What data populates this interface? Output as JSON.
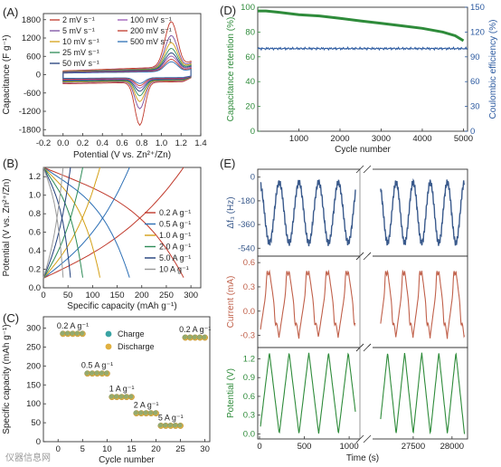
{
  "watermark": "仪器信息网",
  "chart_data": [
    {
      "panel": "(A)",
      "type": "line",
      "xlabel": "Potential (V vs. Zn²⁺/Zn)",
      "ylabel": "Capacitance (F g⁻¹)",
      "xlim": [
        -0.2,
        1.4
      ],
      "ylim": [
        -2000,
        2000
      ],
      "xticks": [
        -0.2,
        0.0,
        0.2,
        0.4,
        0.6,
        0.8,
        1.0,
        1.2,
        1.4
      ],
      "xtick_labels": [
        "-0.2",
        "0.0",
        "0.2",
        "0.4",
        "0.6",
        "0.8",
        "1.0",
        "1.2",
        "1.4"
      ],
      "yticks": [
        -1800,
        -1200,
        -600,
        0,
        600,
        1200,
        1800
      ],
      "legend": [
        "2 mV s⁻¹",
        "5 mV s⁻¹",
        "10 mV s⁻¹",
        "25 mV s⁻¹",
        "50 mV s⁻¹",
        "100 mV s⁻¹",
        "200 mV s⁻¹",
        "500 mV s⁻¹"
      ],
      "series": [
        {
          "name": "2 mV s⁻¹",
          "color": "#c0392b",
          "peak_anodic": 1750,
          "peak_cathodic": -1650,
          "base": 250
        },
        {
          "name": "5 mV s⁻¹",
          "color": "#7b4fa0",
          "peak_anodic": 1250,
          "peak_cathodic": -1050,
          "base": 220
        },
        {
          "name": "10 mV s⁻¹",
          "color": "#d4a017",
          "peak_anodic": 1000,
          "peak_cathodic": -800,
          "base": 200
        },
        {
          "name": "25 mV s⁻¹",
          "color": "#2e8b57",
          "peak_anodic": 800,
          "peak_cathodic": -600,
          "base": 180
        },
        {
          "name": "50 mV s⁻¹",
          "color": "#1f3d7a",
          "peak_anodic": 650,
          "peak_cathodic": -450,
          "base": 160
        },
        {
          "name": "100 mV s⁻¹",
          "color": "#9b59b6",
          "peak_anodic": 550,
          "peak_cathodic": -350,
          "base": 140
        },
        {
          "name": "200 mV s⁻¹",
          "color": "#c0392b",
          "peak_anodic": 450,
          "peak_cathodic": -280,
          "base": 120
        },
        {
          "name": "500 mV s⁻¹",
          "color": "#2c6fb5",
          "peak_anodic": 380,
          "peak_cathodic": -220,
          "base": 100
        }
      ]
    },
    {
      "panel": "(B)",
      "type": "line",
      "xlabel": "Specific capacity (mAh g⁻¹)",
      "ylabel": "Potential (V vs. Zn²⁺/Zn)",
      "xlim": [
        0,
        320
      ],
      "ylim": [
        0,
        1.3
      ],
      "xticks": [
        0,
        50,
        100,
        150,
        200,
        250,
        300
      ],
      "yticks": [
        0.0,
        0.2,
        0.4,
        0.6,
        0.8,
        1.0,
        1.2
      ],
      "ytick_labels": [
        "0.0",
        "0.2",
        "0.4",
        "0.6",
        "0.8",
        "1.0",
        "1.2"
      ],
      "legend": [
        "0.2 A g⁻¹",
        "0.5 A g⁻¹",
        "1.0 A g⁻¹",
        "2.0 A g⁻¹",
        "5.0 A g⁻¹",
        "10 A g⁻¹"
      ],
      "series": [
        {
          "name": "0.2 A g⁻¹",
          "color": "#c0392b",
          "capacity": 285
        },
        {
          "name": "0.5 A g⁻¹",
          "color": "#2c6fb5",
          "capacity": 175
        },
        {
          "name": "1.0 A g⁻¹",
          "color": "#d4a017",
          "capacity": 115
        },
        {
          "name": "2.0 A g⁻¹",
          "color": "#2e8b57",
          "capacity": 80
        },
        {
          "name": "5.0 A g⁻¹",
          "color": "#1f3d7a",
          "capacity": 55
        },
        {
          "name": "10 A g⁻¹",
          "color": "#999999",
          "capacity": 40
        }
      ]
    },
    {
      "panel": "(C)",
      "type": "scatter",
      "xlabel": "Cycle number",
      "ylabel": "Specific capacity (mAh g⁻¹)",
      "xlim": [
        -3,
        31
      ],
      "ylim": [
        0,
        330
      ],
      "xticks": [
        0,
        5,
        10,
        15,
        20,
        25,
        30
      ],
      "yticks": [
        0,
        50,
        100,
        150,
        200,
        250,
        300
      ],
      "legend": [
        "Charge",
        "Discharge"
      ],
      "series_colors": {
        "charge": "#3aa3a3",
        "discharge": "#e0b040"
      },
      "groups": [
        {
          "label": "0.2 A g⁻¹",
          "cycles": [
            1,
            2,
            3,
            4,
            5
          ],
          "value": 285
        },
        {
          "label": "0.5 A g⁻¹",
          "cycles": [
            6,
            7,
            8,
            9,
            10
          ],
          "value": 180
        },
        {
          "label": "1 A g⁻¹",
          "cycles": [
            11,
            12,
            13,
            14,
            15
          ],
          "value": 118
        },
        {
          "label": "2 A g⁻¹",
          "cycles": [
            16,
            17,
            18,
            19,
            20
          ],
          "value": 75
        },
        {
          "label": "5 A g⁻¹",
          "cycles": [
            21,
            22,
            23,
            24,
            25
          ],
          "value": 42
        },
        {
          "label": "0.2 A g⁻¹",
          "cycles": [
            26,
            27,
            28,
            29,
            30
          ],
          "value": 275
        }
      ]
    },
    {
      "panel": "(D)",
      "type": "line",
      "xlabel": "Cycle number",
      "ylabel": "Capacitance retention (%)",
      "ylabel_right": "Coulombic efficiency (%)",
      "xlim": [
        0,
        5100
      ],
      "ylim": [
        0,
        100
      ],
      "ylim_right": [
        0,
        150
      ],
      "xticks": [
        1000,
        2000,
        3000,
        4000,
        5000
      ],
      "yticks": [
        0,
        20,
        40,
        60,
        80,
        100
      ],
      "yticks_right": [
        0,
        30,
        60,
        90,
        120,
        150
      ],
      "series": [
        {
          "name": "retention",
          "color": "#2e8b3a",
          "x": [
            0,
            200,
            500,
            1000,
            1500,
            2000,
            2500,
            3000,
            3500,
            4000,
            4500,
            4800,
            5000
          ],
          "y": [
            97,
            97,
            96,
            94,
            93,
            91,
            89,
            87,
            85,
            83,
            80,
            77,
            73
          ]
        },
        {
          "name": "efficiency",
          "color": "#2c5aa0",
          "axis": "right",
          "value": 100
        }
      ]
    },
    {
      "panel": "(E)",
      "type": "line",
      "xlabel": "Time (s)",
      "xticks_left": [
        0,
        500,
        1000
      ],
      "xticks_right": [
        27500,
        28000
      ],
      "subplots": [
        {
          "ylabel": "Δf₃ (Hz)",
          "color": "#3a5a8c",
          "yticks": [
            0,
            -180,
            -360,
            -540
          ],
          "ylim": [
            -600,
            60
          ]
        },
        {
          "ylabel": "Current (mA)",
          "color": "#c0604a",
          "yticks": [
            -0.3,
            0.0,
            0.3,
            0.6
          ],
          "ytick_labels": [
            "-0.3",
            "0.0",
            "0.3",
            "0.6"
          ],
          "ylim": [
            -0.45,
            0.68
          ]
        },
        {
          "ylabel": "Potential (V)",
          "color": "#2e8b3a",
          "yticks": [
            0.0,
            0.3,
            0.6,
            0.9,
            1.2
          ],
          "ytick_labels": [
            "0.0",
            "0.3",
            "0.6",
            "0.9",
            "1.2"
          ],
          "ylim": [
            -0.08,
            1.38
          ]
        }
      ]
    }
  ]
}
